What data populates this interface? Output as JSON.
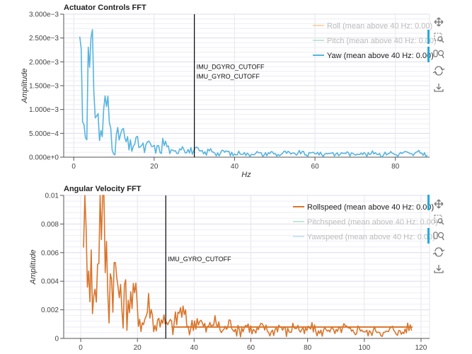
{
  "chart_data": [
    {
      "type": "line",
      "title": "Actuator Controls FFT",
      "xlabel": "Hz",
      "ylabel": "Amplitude",
      "xlim": [
        -2.5,
        88.5
      ],
      "ylim": [
        0,
        0.003
      ],
      "x_ticks": [
        0,
        20,
        40,
        60,
        80
      ],
      "x_tick_labels": [
        "0",
        "20",
        "40",
        "60",
        "80"
      ],
      "y_ticks": [
        0,
        0.0005,
        0.001,
        0.0015,
        0.002,
        0.0025,
        0.003
      ],
      "y_tick_labels": [
        "0.000e+0",
        "5.000e−4",
        "1.000e−3",
        "1.500e−3",
        "2.000e−3",
        "2.500e−3",
        "3.000e−3"
      ],
      "legend_position": "top-right",
      "series": [
        {
          "name": "Roll (mean above 40 Hz: 0.00)",
          "color": "#f5b87a",
          "visible": false
        },
        {
          "name": "Pitch (mean above 40 Hz: 0.00)",
          "color": "#8fd6b3",
          "visible": false
        },
        {
          "name": "Yaw (mean above 40 Hz: 0.00)",
          "color": "#56b4e0",
          "visible": true,
          "x": [
            1.5,
            2.0,
            2.5,
            3.0,
            3.5,
            4.0,
            5.0,
            6.0,
            7.0,
            8.0,
            9.0,
            10.0,
            12.0,
            14.0,
            16.0,
            18.0,
            20.0,
            22.0,
            24.0,
            26.0,
            28.0,
            30.0,
            35.0,
            40.0,
            50.0,
            60.0,
            70.0,
            80.0,
            88.0
          ],
          "y": [
            0.003,
            0.0025,
            0.0015,
            0.0022,
            0.0025,
            0.002,
            0.0018,
            0.0012,
            0.0009,
            0.0012,
            0.0008,
            0.0006,
            0.0005,
            0.0004,
            0.0003,
            0.00035,
            0.0002,
            0.0004,
            0.00015,
            0.0002,
            0.0003,
            0.00015,
            0.00015,
            0.0001,
            0.0001,
            0.0001,
            0.0001,
            0.0001,
            0.0001
          ]
        }
      ],
      "annotations": [
        {
          "x": 30,
          "label": "IMU_DGYRO_CUTOFF",
          "label_y": 0.00185
        },
        {
          "x": 30,
          "label": "IMU_GYRO_CUTOFF",
          "label_y": 0.00165
        }
      ]
    },
    {
      "type": "line",
      "title": "Angular Velocity FFT",
      "xlabel": "",
      "ylabel": "Amplitude",
      "xlim": [
        -6,
        123
      ],
      "ylim": [
        0,
        0.01
      ],
      "x_ticks": [
        0,
        20,
        40,
        60,
        80,
        100,
        120
      ],
      "x_tick_labels": [
        "0",
        "20",
        "40",
        "60",
        "80",
        "100",
        "120"
      ],
      "y_ticks": [
        0,
        0.002,
        0.004,
        0.006,
        0.008,
        0.01
      ],
      "y_tick_labels": [
        "0",
        "0.002",
        "0.004",
        "0.006",
        "0.008",
        "0.01"
      ],
      "legend_position": "top-right",
      "series": [
        {
          "name": "Rollspeed (mean above 40 Hz: 0.00)",
          "color": "#d9752b",
          "visible": true,
          "x": [
            1.0,
            2.0,
            3.0,
            5.0,
            7.0,
            9.0,
            10.0,
            12.0,
            14.0,
            16.0,
            18.0,
            20.0,
            22.0,
            24.0,
            26.0,
            28.0,
            30.0,
            32.0,
            34.0,
            38.0,
            45.0,
            55.0,
            65.0,
            75.0,
            85.0,
            95.0,
            105.0,
            117.0
          ],
          "y": [
            0.01,
            0.0062,
            0.0095,
            0.0045,
            0.0098,
            0.0085,
            0.0088,
            0.005,
            0.003,
            0.0054,
            0.0025,
            0.0035,
            0.0018,
            0.0025,
            0.0013,
            0.0026,
            0.0008,
            0.0015,
            0.0022,
            0.0015,
            0.0012,
            0.001,
            0.0008,
            0.0009,
            0.0007,
            0.0008,
            0.0006,
            0.0008
          ]
        },
        {
          "name": "Pitchspeed (mean above 40 Hz: 0.00)",
          "color": "#8fd6b3",
          "visible": false
        },
        {
          "name": "Yawspeed (mean above 40 Hz: 0.00)",
          "color": "#a9cfe8",
          "visible": false
        }
      ],
      "annotations": [
        {
          "x": 30,
          "label": "IMU_GYRO_CUTOFF",
          "label_y": 0.0054
        }
      ]
    }
  ],
  "toolbar": {
    "tools": [
      "pan-icon",
      "box-zoom-icon",
      "wheel-zoom-icon",
      "reset-icon",
      "save-icon"
    ]
  }
}
